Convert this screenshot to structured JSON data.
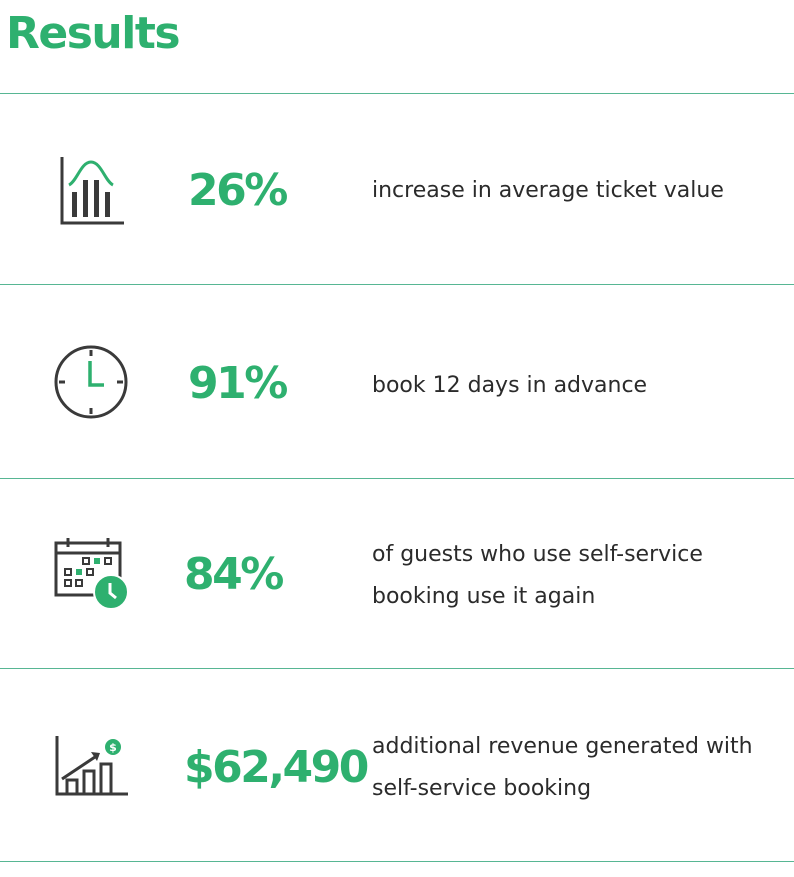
{
  "title": "Results",
  "colors": {
    "accent": "#2eb06f",
    "icon": "#3a3a3a",
    "rule": "#57b693"
  },
  "results": [
    {
      "icon": "bar-chart-bell-curve-icon",
      "value": "26%",
      "description": "increase in average ticket value"
    },
    {
      "icon": "clock-icon",
      "value": "91%",
      "description": "book 12 days in advance"
    },
    {
      "icon": "calendar-clock-icon",
      "value": "84%",
      "description": "of guests who use self-service booking use it again"
    },
    {
      "icon": "revenue-growth-chart-icon",
      "value": "$62,490",
      "description": "additional revenue generated with self-service booking"
    }
  ]
}
